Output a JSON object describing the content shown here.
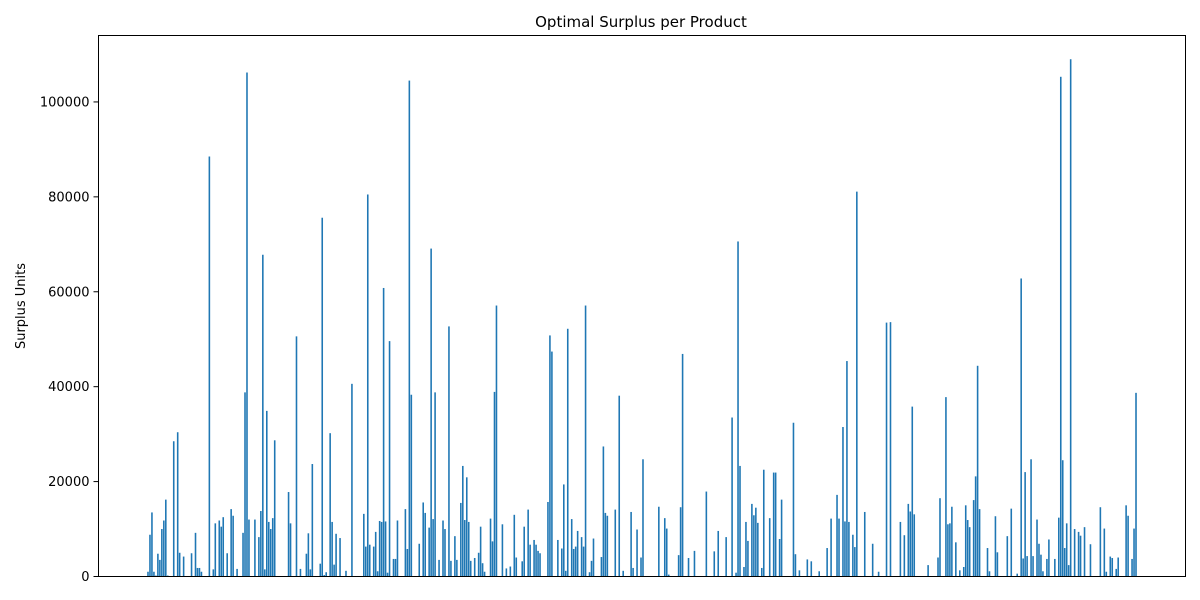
{
  "chart_data": {
    "type": "bar",
    "title": "Optimal Surplus per Product",
    "xlabel": "",
    "ylabel": "Surplus Units",
    "ylim": [
      0,
      114000
    ],
    "yticks": [
      0,
      20000,
      40000,
      60000,
      80000,
      100000
    ],
    "x_tick_labels": "none",
    "color": "#1f77b4",
    "grid": false,
    "values": [
      1000,
      8800,
      13500,
      1000,
      200,
      4800,
      3500,
      10000,
      11800,
      16200,
      200,
      0,
      0,
      28500,
      0,
      30400,
      5000,
      0,
      4200,
      0,
      0,
      0,
      4900,
      0,
      9200,
      1800,
      1800,
      1000,
      0,
      0,
      0,
      88500,
      0,
      1500,
      11200,
      0,
      11800,
      10500,
      12500,
      0,
      4900,
      0,
      14200,
      12800,
      0,
      1600,
      0,
      0,
      9200,
      38800,
      106200,
      12000,
      0,
      0,
      12000,
      0,
      8300,
      13800,
      67800,
      1500,
      34900,
      11500,
      10000,
      12300,
      28700,
      0,
      0,
      0,
      0,
      0,
      0,
      17800,
      11200,
      0,
      0,
      50600,
      0,
      1600,
      0,
      0,
      4800,
      9100,
      1500,
      23700,
      0,
      0,
      0,
      2700,
      75600,
      300,
      900,
      0,
      30200,
      11500,
      2500,
      9000,
      0,
      8100,
      0,
      0,
      1200,
      0,
      0,
      40600,
      0,
      0,
      0,
      0,
      0,
      13200,
      6300,
      80500,
      6700,
      0,
      6300,
      9400,
      1100,
      11700,
      11500,
      60800,
      11600,
      800,
      49600,
      0,
      3700,
      3700,
      11800,
      0,
      0,
      0,
      14200,
      5800,
      104500,
      38300,
      0,
      0,
      0,
      6900,
      0,
      15600,
      13400,
      0,
      10300,
      69100,
      12100,
      38800,
      0,
      3500,
      0,
      11800,
      10000,
      0,
      52700,
      3300,
      0,
      8500,
      3500,
      0,
      15500,
      23300,
      11900,
      20900,
      11500,
      3300,
      0,
      3900,
      0,
      5000,
      10500,
      2800,
      1000,
      0,
      0,
      12200,
      7400,
      38900,
      57100,
      0,
      0,
      11000,
      0,
      1700,
      0,
      2100,
      0,
      13000,
      4000,
      0,
      0,
      3200,
      10500,
      0,
      14100,
      6700,
      0,
      7700,
      6700,
      5400,
      4900,
      0,
      0,
      0,
      15700,
      50800,
      47400,
      0,
      0,
      7700,
      0,
      5900,
      19400,
      1200,
      52200,
      0,
      12100,
      5800,
      6300,
      9600,
      0,
      8300,
      6300,
      57100,
      0,
      900,
      3300,
      8000,
      0,
      0,
      0,
      4100,
      27400,
      13400,
      12800,
      0,
      0,
      0,
      14100,
      0,
      38100,
      0,
      1200,
      0,
      0,
      0,
      13600,
      1800,
      0,
      9900,
      0,
      4000,
      24700,
      0,
      0,
      0,
      0,
      0,
      0,
      0,
      14700,
      0,
      0,
      12300,
      10100,
      400,
      0,
      0,
      0,
      0,
      4500,
      14600,
      46900,
      0,
      0,
      3900,
      0,
      0,
      5400,
      0,
      0,
      0,
      0,
      0,
      17900,
      0,
      0,
      0,
      5300,
      0,
      9600,
      0,
      0,
      0,
      8300,
      0,
      0,
      33500,
      0,
      800,
      70600,
      23300,
      0,
      2000,
      11500,
      7500,
      0,
      15300,
      12900,
      14500,
      11300,
      0,
      1800,
      22500,
      0,
      0,
      12300,
      0,
      21900,
      21900,
      0,
      7900,
      16200,
      0,
      0,
      0,
      0,
      0,
      32400,
      4700,
      0,
      1300,
      0,
      0,
      0,
      3600,
      0,
      3200,
      0,
      0,
      0,
      1100,
      0,
      0,
      0,
      6000,
      0,
      12200,
      0,
      0,
      17200,
      12200,
      0,
      31500,
      11600,
      45400,
      11500,
      0,
      8800,
      6200,
      81100,
      0,
      0,
      0,
      13600,
      0,
      0,
      0,
      6900,
      0,
      0,
      1000,
      0,
      0,
      0,
      53500,
      0,
      53600,
      0,
      0,
      0,
      0,
      11500,
      0,
      8700,
      0,
      15300,
      13700,
      35800,
      13100,
      0,
      0,
      0,
      0,
      0,
      0,
      2400,
      0,
      0,
      0,
      0,
      4000,
      16500,
      0,
      0,
      37800,
      11000,
      11200,
      14700,
      0,
      7200,
      0,
      1300,
      0,
      2000,
      15000,
      11900,
      10400,
      0,
      16100,
      21100,
      44400,
      14200,
      0,
      0,
      0,
      6000,
      1100,
      0,
      0,
      12700,
      5100,
      0,
      0,
      0,
      0,
      8500,
      0,
      14300,
      0,
      0,
      600,
      0,
      62800,
      3800,
      22000,
      4300,
      0,
      24700,
      4300,
      0,
      12000,
      6900,
      4600,
      1100,
      0,
      3700,
      7800,
      0,
      0,
      3700,
      0,
      12400,
      105300,
      24500,
      6000,
      11200,
      2400,
      109000,
      0,
      10000,
      0,
      9400,
      8600,
      0,
      10400,
      0,
      0,
      6800,
      0,
      0,
      0,
      0,
      14600,
      0,
      10100,
      1000,
      0,
      4200,
      3900,
      0,
      1600,
      4000,
      0,
      0,
      0,
      15000,
      12800,
      0,
      3700,
      10100,
      38700
    ]
  }
}
